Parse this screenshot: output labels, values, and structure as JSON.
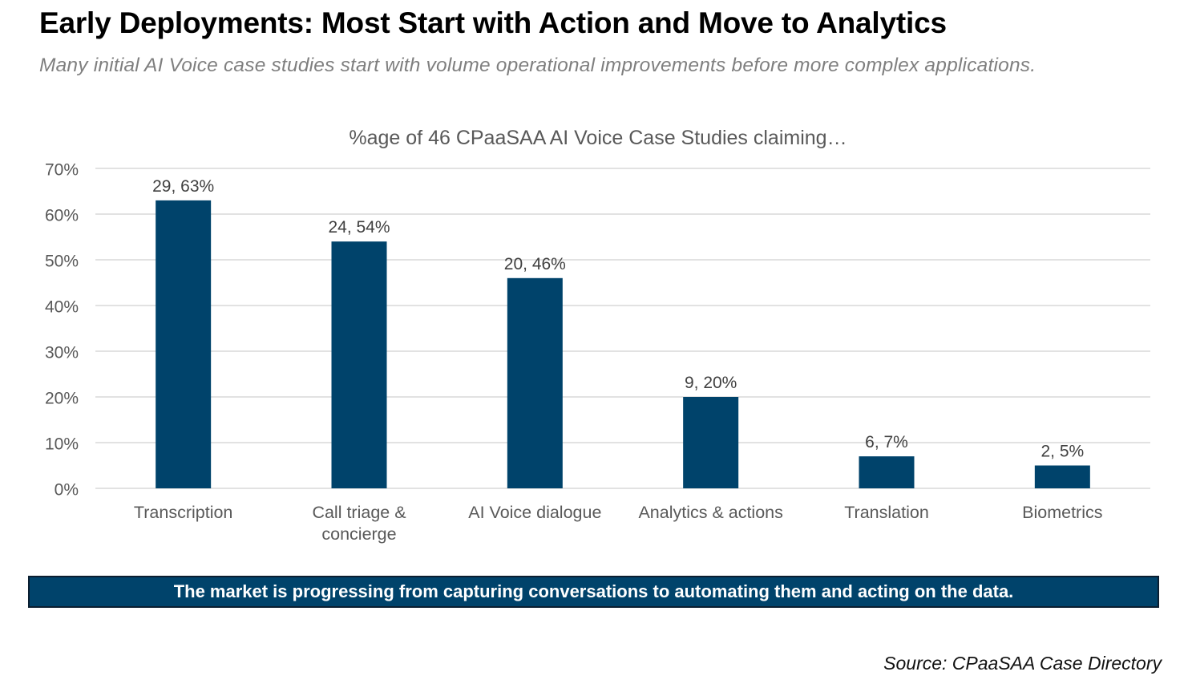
{
  "header": {
    "title": "Early Deployments: Most Start with Action and Move to Analytics",
    "subtitle": "Many initial AI Voice case studies start with volume operational improvements before more complex applications."
  },
  "chart_data": {
    "type": "bar",
    "title": "%age of 46 CPaaSAA AI Voice Case Studies claiming…",
    "xlabel": "",
    "ylabel": "",
    "categories": [
      [
        "Transcription"
      ],
      [
        "Call triage &",
        "concierge"
      ],
      [
        "AI Voice dialogue"
      ],
      [
        "Analytics & actions"
      ],
      [
        "Translation"
      ],
      [
        "Biometrics"
      ]
    ],
    "values": [
      63,
      54,
      46,
      20,
      7,
      5
    ],
    "counts": [
      29,
      24,
      20,
      9,
      6,
      2
    ],
    "data_labels": [
      "29, 63%",
      "24, 54%",
      "20, 46%",
      "9, 20%",
      "6, 7%",
      "2, 5%"
    ],
    "ylim": [
      0,
      70
    ],
    "yticks": [
      0,
      10,
      20,
      30,
      40,
      50,
      60,
      70
    ],
    "ytick_labels": [
      "0%",
      "10%",
      "20%",
      "30%",
      "40%",
      "50%",
      "60%",
      "70%"
    ],
    "grid": true,
    "legend": "none",
    "bar_color": "#00436b",
    "grid_color": "#d9d9d9",
    "text_color": "#595959"
  },
  "callout": {
    "text": "The market is progressing from capturing conversations to automating them and acting on the data."
  },
  "footer": {
    "source": "Source: CPaaSAA Case Directory"
  }
}
